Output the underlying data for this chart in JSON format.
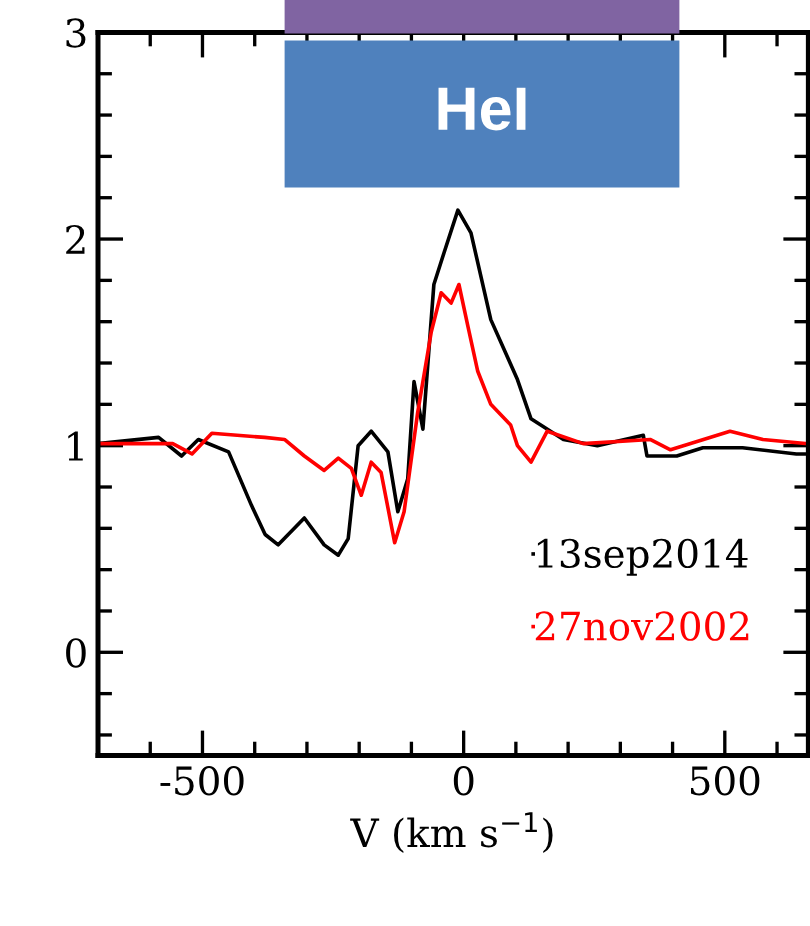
{
  "chart_data": {
    "type": "line",
    "xlabel": "V (km s$^{−1}$)",
    "annotations": [
      "HeI"
    ],
    "xlim": [
      -700,
      660
    ],
    "ylim": [
      -0.5,
      3
    ],
    "xticks": [
      {
        "value": -600,
        "label": null
      },
      -500,
      {
        "value": -400,
        "label": null
      },
      {
        "value": -300,
        "label": null
      },
      {
        "value": -200,
        "label": null
      },
      {
        "value": -100,
        "label": null
      },
      0,
      {
        "value": 100,
        "label": null
      },
      {
        "value": 200,
        "label": null
      },
      {
        "value": 300,
        "label": null
      },
      {
        "value": 400,
        "label": null
      },
      500,
      {
        "value": 600,
        "label": null
      }
    ],
    "yticks": [
      {
        "value": -0.4,
        "label": null
      },
      {
        "value": -0.2,
        "label": null
      },
      0,
      {
        "value": 0.2,
        "label": null
      },
      {
        "value": 0.4,
        "label": null
      },
      {
        "value": 0.6,
        "label": null
      },
      {
        "value": 0.8,
        "label": null
      },
      1,
      {
        "value": 1.2,
        "label": null
      },
      {
        "value": 1.4,
        "label": null
      },
      {
        "value": 1.6,
        "label": null
      },
      {
        "value": 1.8,
        "label": null
      },
      2,
      {
        "value": 2.2,
        "label": null
      },
      {
        "value": 2.4,
        "label": null
      },
      {
        "value": 2.6,
        "label": null
      },
      {
        "value": 2.8,
        "label": null
      },
      3
    ],
    "grid": false,
    "legend": "bottom right",
    "marker": "none",
    "line_style": "solid",
    "series": [
      {
        "name": "13sep2014",
        "color": "#000000",
        "x": [
          -700,
          -584,
          -540,
          -508,
          -450,
          -406,
          -380,
          -355,
          -305,
          -267,
          -240,
          -221,
          -202,
          -177,
          -145,
          -126,
          -107,
          -95,
          -78,
          -57,
          -38,
          -11,
          14,
          52,
          103,
          129,
          191,
          256,
          344,
          351,
          408,
          458,
          534,
          637,
          656
        ],
        "values": [
          1.01,
          1.04,
          0.95,
          1.03,
          0.97,
          0.71,
          0.57,
          0.52,
          0.65,
          0.52,
          0.47,
          0.55,
          1.0,
          1.07,
          0.97,
          0.68,
          0.84,
          1.31,
          1.08,
          1.78,
          1.93,
          2.14,
          2.03,
          1.61,
          1.32,
          1.13,
          1.03,
          1.0,
          1.05,
          0.95,
          0.95,
          0.99,
          0.99,
          0.96,
          0.96
        ]
      },
      {
        "name": "27nov2002",
        "color": "#ff0000",
        "x": [
          -700,
          -557,
          -520,
          -482,
          -381,
          -343,
          -305,
          -267,
          -240,
          -215,
          -196,
          -177,
          -158,
          -132,
          -114,
          -88,
          -62,
          -43,
          -24,
          -9,
          8,
          27,
          52,
          90,
          103,
          129,
          160,
          229,
          357,
          396,
          510,
          573,
          656
        ],
        "values": [
          1.01,
          1.01,
          0.96,
          1.06,
          1.04,
          1.03,
          0.95,
          0.88,
          0.94,
          0.89,
          0.76,
          0.92,
          0.87,
          0.53,
          0.68,
          1.16,
          1.55,
          1.74,
          1.69,
          1.78,
          1.58,
          1.36,
          1.2,
          1.1,
          1.0,
          0.92,
          1.07,
          1.01,
          1.03,
          0.98,
          1.07,
          1.03,
          1.01
        ]
      }
    ]
  }
}
